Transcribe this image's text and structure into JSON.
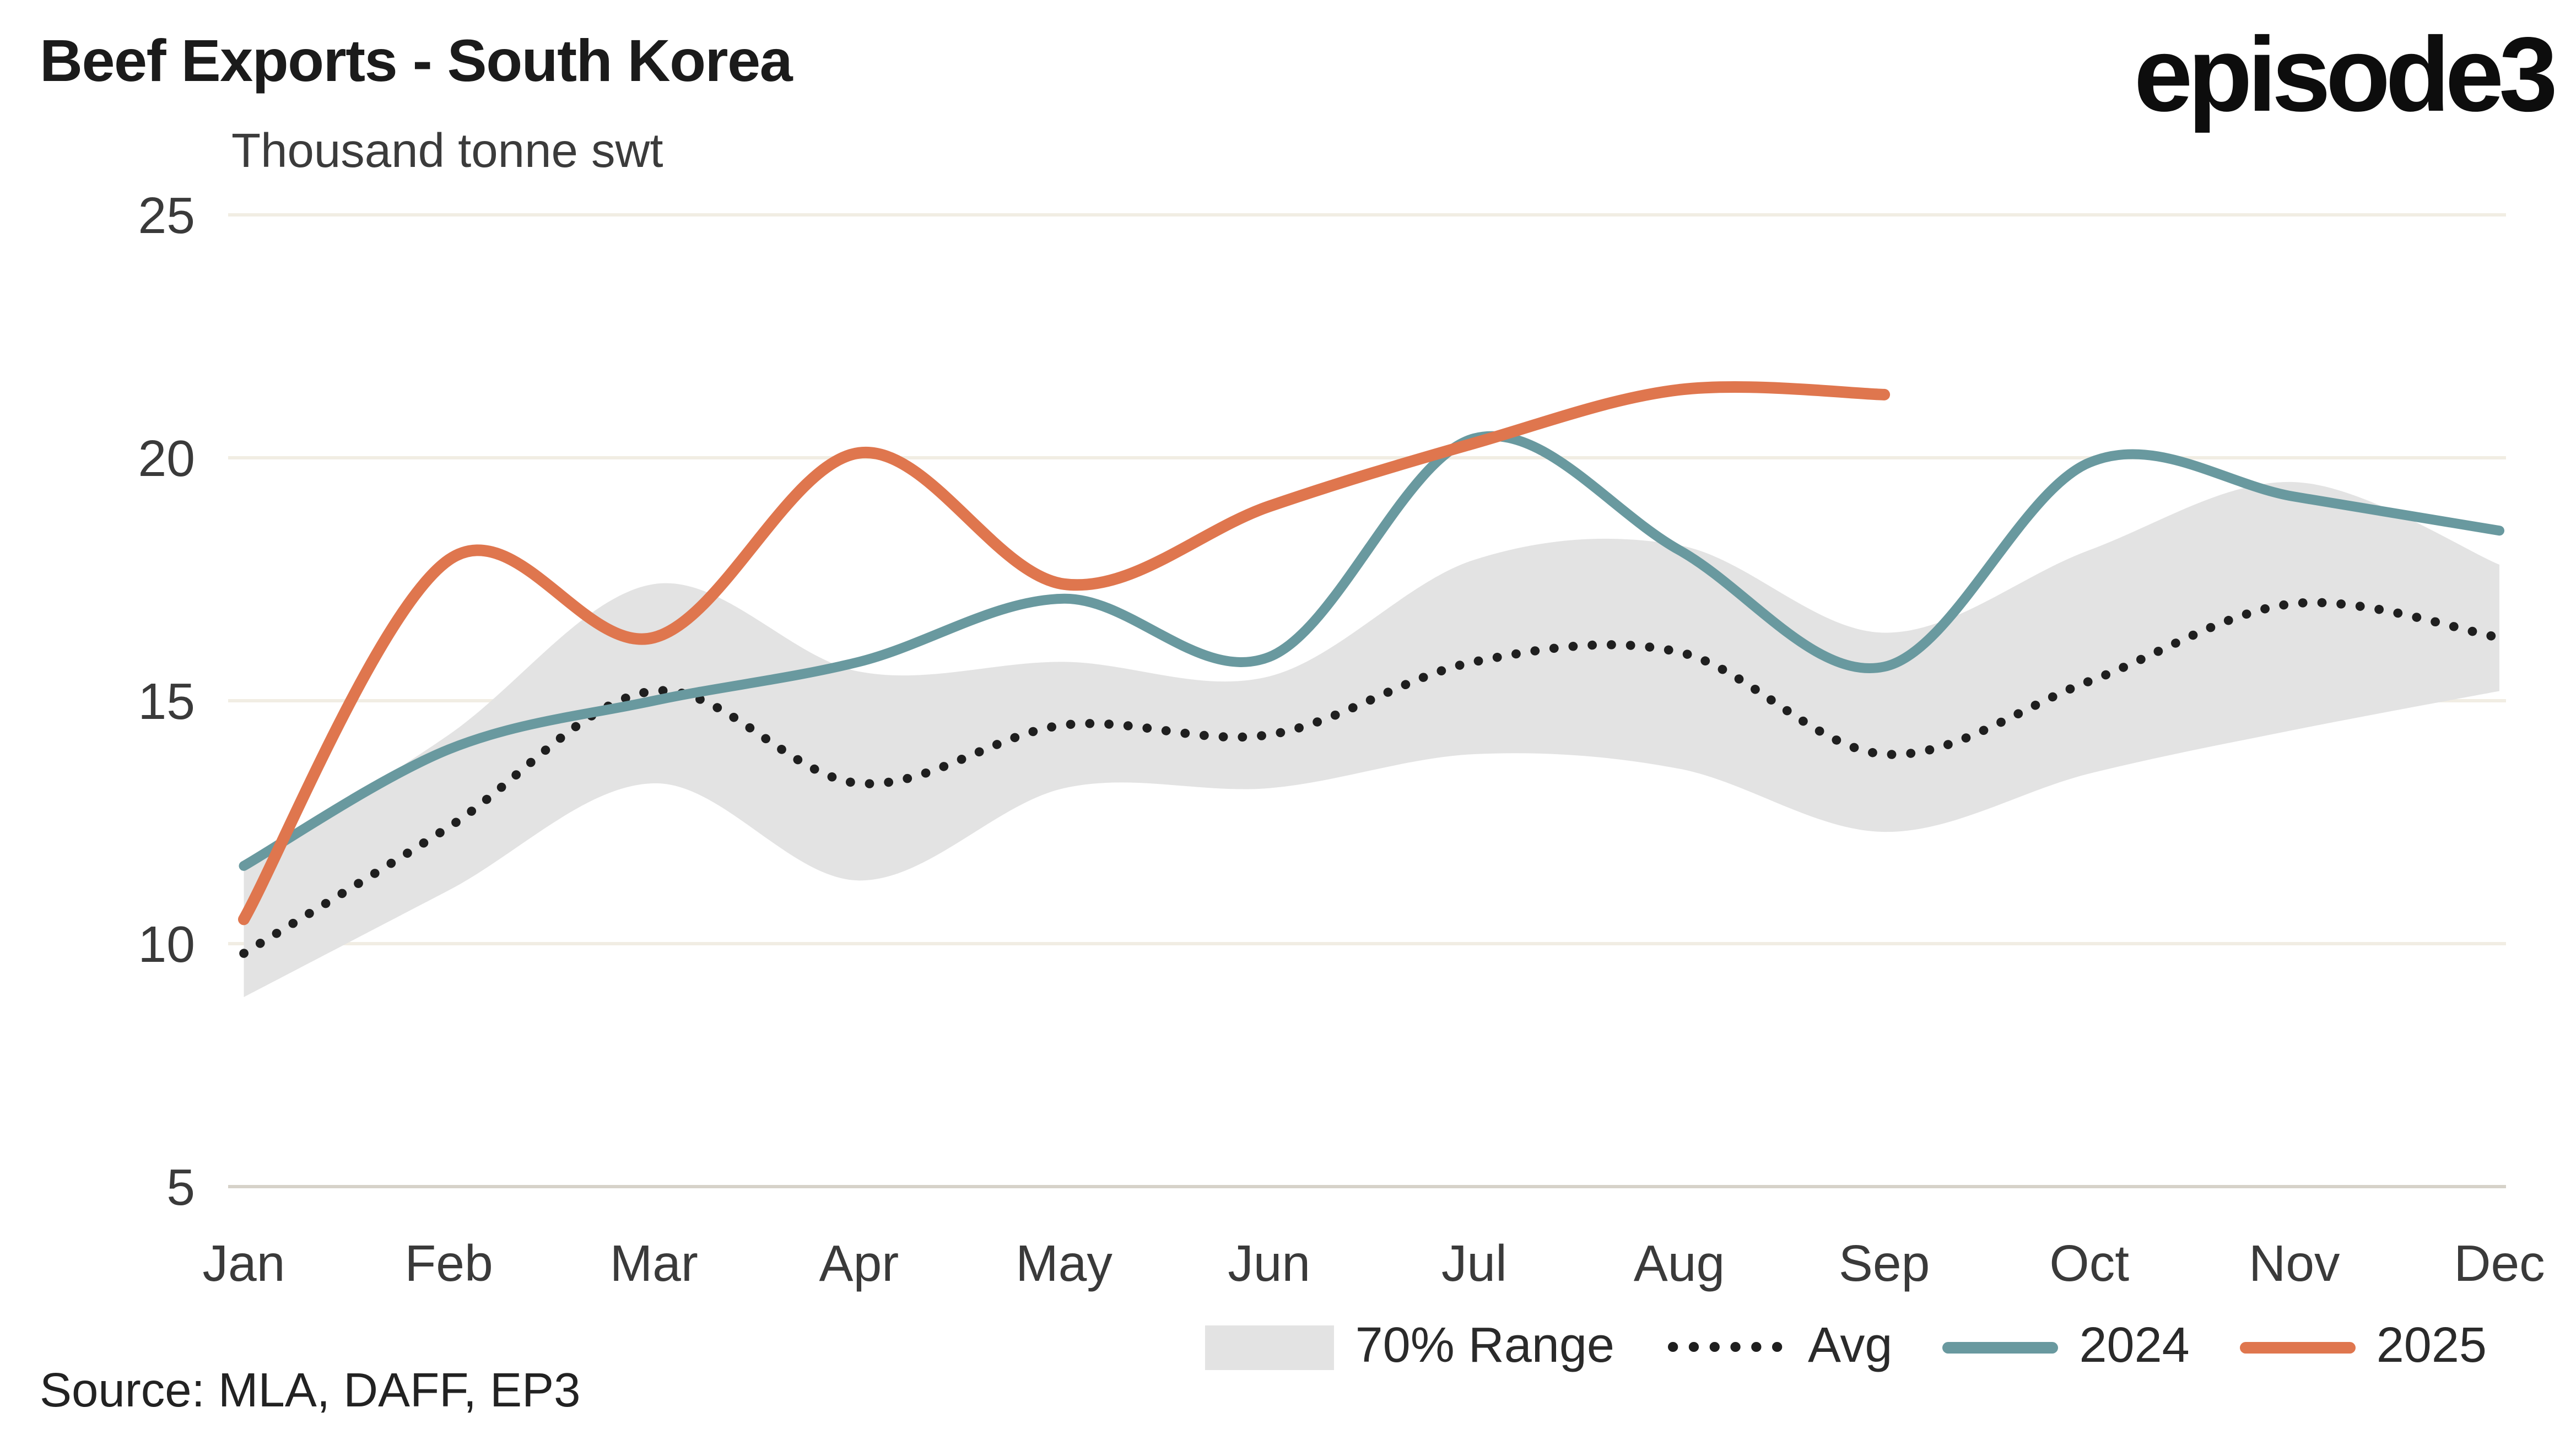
{
  "header": {
    "title": "Beef Exports - South Korea",
    "subtitle": "Thousand tonne swt",
    "logo": "episode3"
  },
  "source": {
    "label": "Source: MLA, DAFF, EP3"
  },
  "legend": {
    "items": [
      {
        "label": "70% Range"
      },
      {
        "label": "Avg"
      },
      {
        "label": "2024"
      },
      {
        "label": "2025"
      }
    ]
  },
  "colors": {
    "grid": "#f1ede3",
    "axis": "#d6d2c9",
    "band": "#e3e3e3",
    "avg": "#1f1f1f",
    "series_2024": "#69999f",
    "series_2025": "#df764e",
    "tick_text": "#3a3a3a"
  },
  "chart_data": {
    "type": "line",
    "title": "Beef Exports - South Korea",
    "xlabel": "",
    "ylabel": "Thousand tonne swt",
    "categories": [
      "Jan",
      "Feb",
      "Mar",
      "Apr",
      "May",
      "Jun",
      "Jul",
      "Aug",
      "Sep",
      "Oct",
      "Nov",
      "Dec"
    ],
    "ylim": [
      5,
      25
    ],
    "yticks": [
      5,
      10,
      15,
      20,
      25
    ],
    "grid": true,
    "legend_position": "bottom",
    "band_70_range": {
      "name": "70% Range",
      "upper": [
        11.6,
        14.3,
        17.4,
        15.6,
        15.8,
        15.5,
        17.9,
        18.2,
        16.4,
        18.1,
        19.5,
        17.8
      ],
      "lower": [
        8.9,
        11.1,
        13.3,
        11.3,
        13.2,
        13.2,
        13.9,
        13.6,
        12.3,
        13.5,
        14.4,
        15.2
      ]
    },
    "series": [
      {
        "name": "Avg",
        "style": "dotted",
        "color": "#1f1f1f",
        "values": [
          9.8,
          12.4,
          15.2,
          13.3,
          14.5,
          14.3,
          15.8,
          16.0,
          13.9,
          15.4,
          17.0,
          16.3
        ]
      },
      {
        "name": "2024",
        "style": "solid",
        "color": "#69999f",
        "values": [
          11.6,
          14.0,
          15.0,
          15.8,
          17.1,
          15.9,
          20.4,
          18.1,
          15.7,
          19.9,
          19.2,
          18.5
        ]
      },
      {
        "name": "2025",
        "style": "solid",
        "color": "#df764e",
        "values": [
          10.5,
          17.9,
          16.3,
          20.1,
          17.4,
          19.0,
          20.3,
          21.4,
          21.3,
          null,
          null,
          null
        ]
      }
    ]
  }
}
